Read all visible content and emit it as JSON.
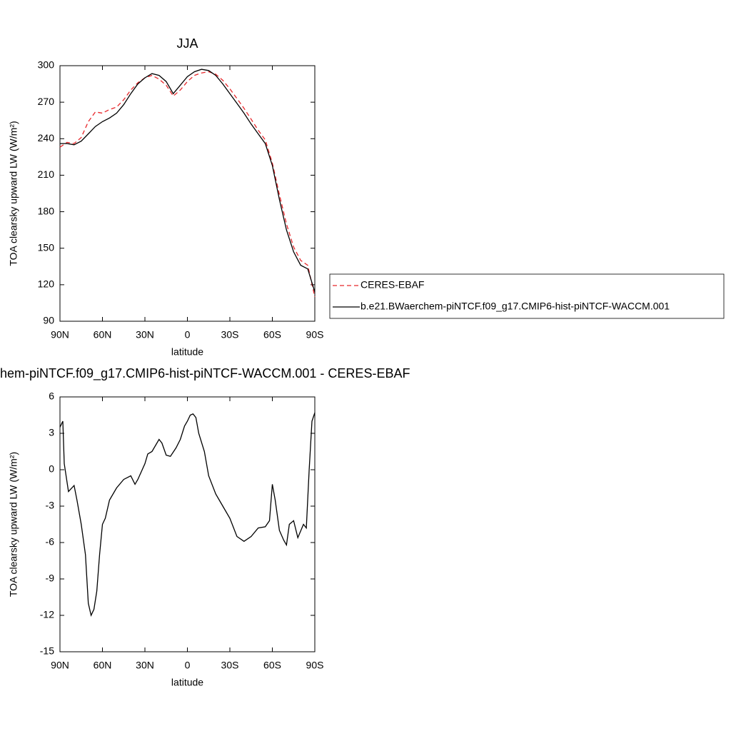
{
  "chart_data": [
    {
      "type": "line",
      "title": "JJA",
      "xlabel": "latitude",
      "ylabel": "TOA clearsky upward LW (W/m²)",
      "x": [
        90,
        85,
        80,
        75,
        70,
        65,
        60,
        55,
        50,
        45,
        40,
        35,
        30,
        25,
        20,
        15,
        10,
        5,
        0,
        -5,
        -10,
        -15,
        -20,
        -25,
        -30,
        -35,
        -40,
        -45,
        -50,
        -55,
        -60,
        -65,
        -70,
        -75,
        -80,
        -85,
        -90
      ],
      "series": [
        {
          "name": "CERES-EBAF",
          "color": "#e8272b",
          "line_style": "dashed",
          "values": [
            233,
            237,
            236,
            241,
            254,
            262,
            261,
            264,
            266,
            272,
            280,
            286,
            290,
            292,
            289,
            284,
            275,
            280,
            287,
            292,
            294,
            295,
            293,
            288,
            281,
            273,
            265,
            256,
            247,
            239,
            220,
            194,
            170,
            151,
            140,
            136,
            110
          ]
        },
        {
          "name": "b.e21.BWaerchem-piNTCF.f09_g17.CMIP6-hist-piNTCF-WACCM.001",
          "color": "#000000",
          "line_style": "solid",
          "values": [
            236,
            236,
            235,
            238,
            244,
            250,
            254,
            257,
            261,
            268,
            277,
            285,
            290,
            293.5,
            292,
            287,
            277,
            284,
            291,
            295,
            297,
            296,
            292,
            285,
            277,
            269,
            261,
            252,
            244,
            236,
            218,
            190,
            165,
            147,
            136,
            133,
            114
          ]
        }
      ],
      "xlim": [
        90,
        -90
      ],
      "xticks": [
        {
          "value": 90,
          "label": "90N"
        },
        {
          "value": 60,
          "label": "60N"
        },
        {
          "value": 30,
          "label": "30N"
        },
        0,
        {
          "value": -30,
          "label": "30S"
        },
        {
          "value": -60,
          "label": "60S"
        },
        {
          "value": -90,
          "label": "90S"
        }
      ],
      "ylim": [
        90,
        300
      ],
      "yticks": [
        90,
        120,
        150,
        180,
        210,
        240,
        270,
        300
      ],
      "legend": "right"
    },
    {
      "type": "line",
      "title": "hem-piNTCF.f09_g17.CMIP6-hist-piNTCF-WACCM.001 - CERES-EBAF",
      "xlabel": "latitude",
      "ylabel": "TOA clearsky upward LW (W/m²)",
      "x": [
        90,
        88,
        87,
        84,
        80,
        78,
        75,
        72,
        70,
        68,
        66,
        64,
        62,
        60,
        58,
        55,
        50,
        45,
        40,
        37,
        35,
        30,
        28,
        25,
        20,
        18,
        15,
        12,
        8,
        5,
        2,
        0,
        -2,
        -4,
        -6,
        -8,
        -12,
        -15,
        -20,
        -25,
        -30,
        -35,
        -40,
        -45,
        -50,
        -55,
        -58,
        -60,
        -62,
        -65,
        -68,
        -70,
        -72,
        -75,
        -78,
        -82,
        -84,
        -86,
        -88,
        -90
      ],
      "values": [
        3.5,
        4.0,
        0.5,
        -1.8,
        -1.3,
        -2.5,
        -4.5,
        -7,
        -11,
        -12,
        -11.5,
        -10,
        -7,
        -4.5,
        -4,
        -2.5,
        -1.5,
        -0.8,
        -0.5,
        -1.2,
        -0.8,
        0.5,
        1.3,
        1.5,
        2.5,
        2.2,
        1.2,
        1.1,
        1.8,
        2.5,
        3.6,
        4.0,
        4.5,
        4.6,
        4.3,
        3.0,
        1.5,
        -0.5,
        -2,
        -3,
        -4,
        -5.5,
        -5.9,
        -5.5,
        -4.8,
        -4.7,
        -4.2,
        -1.2,
        -2.5,
        -5,
        -5.8,
        -6.2,
        -4.5,
        -4.2,
        -5.6,
        -4.5,
        -4.8,
        0,
        4,
        4.7
      ],
      "color": "#000000",
      "xlim": [
        90,
        -90
      ],
      "xticks": [
        {
          "value": 90,
          "label": "90N"
        },
        {
          "value": 60,
          "label": "60N"
        },
        {
          "value": 30,
          "label": "30N"
        },
        0,
        {
          "value": -30,
          "label": "30S"
        },
        {
          "value": -60,
          "label": "60S"
        },
        {
          "value": -90,
          "label": "90S"
        }
      ],
      "ylim": [
        -15,
        6
      ],
      "yticks": [
        -15,
        -12,
        -9,
        -6,
        -3,
        0,
        3,
        6
      ]
    }
  ]
}
